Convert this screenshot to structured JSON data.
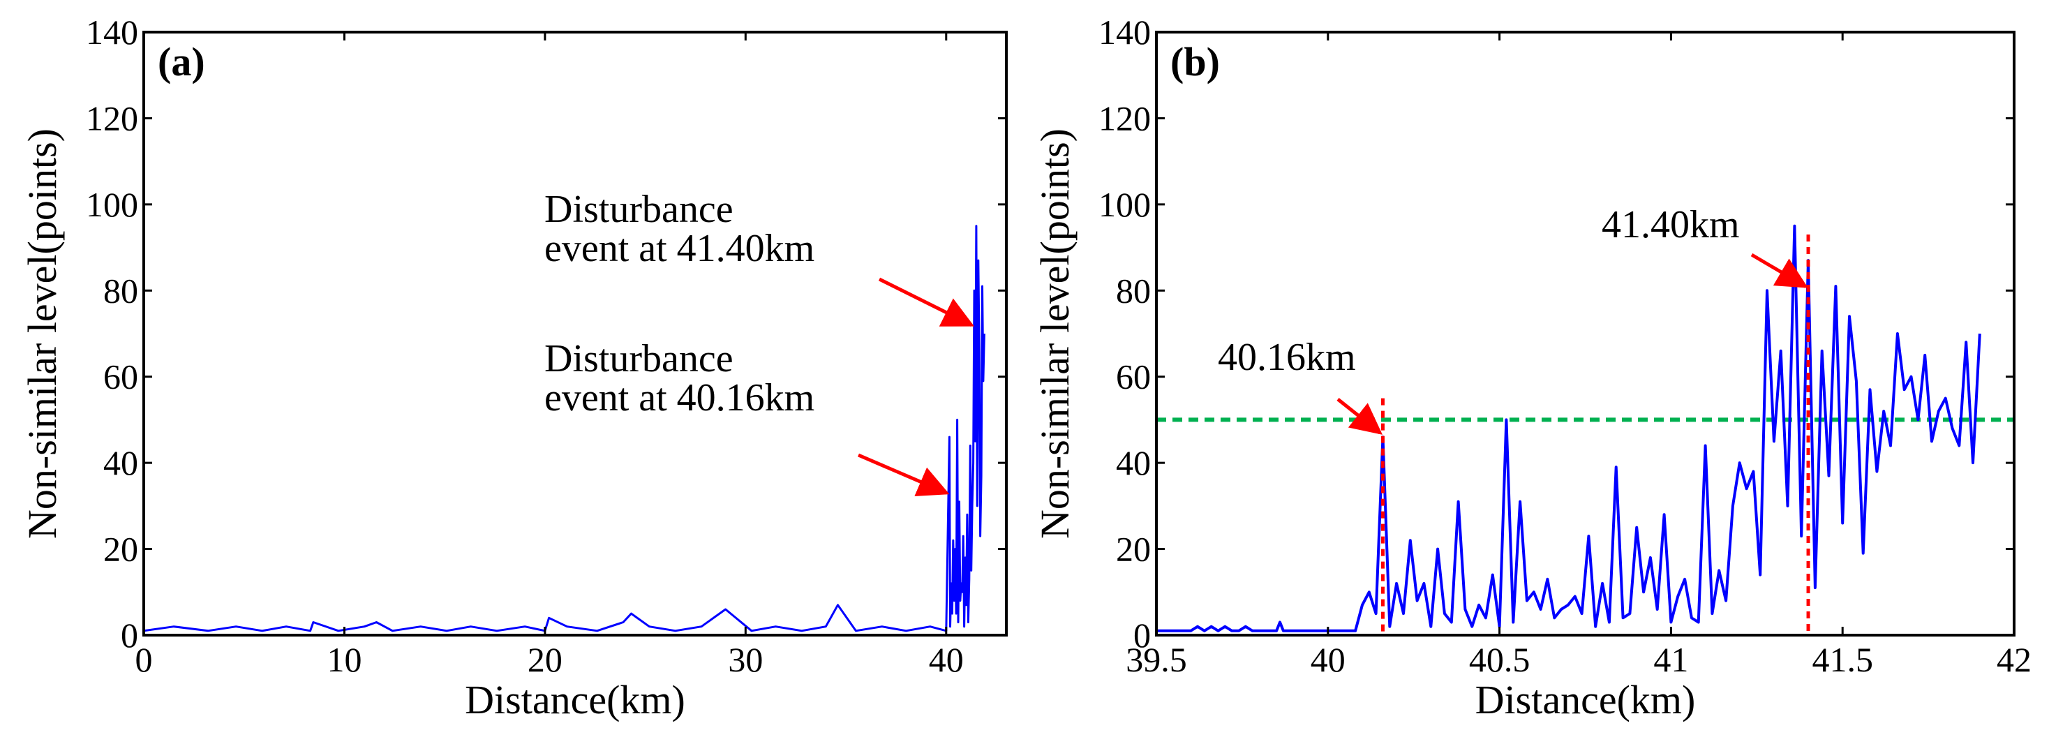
{
  "chart_data": [
    {
      "type": "line",
      "panel_label": "(a)",
      "xlabel": "Distance(km)",
      "ylabel": "Non-similar level(points)",
      "xlim": [
        0,
        43
      ],
      "ylim": [
        0,
        140
      ],
      "xticks": [
        0,
        10,
        20,
        30,
        40
      ],
      "yticks": [
        0,
        20,
        40,
        60,
        80,
        100,
        120,
        140
      ],
      "grid": false,
      "series": [
        {
          "color": "#0000ff",
          "x": [
            0.0,
            1.5,
            3.2,
            4.6,
            5.9,
            7.1,
            8.3,
            8.45,
            9.7,
            11.0,
            11.6,
            12.4,
            13.8,
            15.1,
            16.3,
            17.6,
            19.0,
            20.0,
            20.2,
            21.1,
            22.6,
            23.9,
            24.3,
            25.2,
            26.5,
            27.8,
            29.0,
            30.3,
            31.5,
            32.8,
            34.0,
            34.6,
            35.5,
            36.8,
            38.0,
            39.2,
            40.0,
            40.16,
            40.2,
            40.25,
            40.3,
            40.35,
            40.4,
            40.45,
            40.5,
            40.55,
            40.6,
            40.65,
            40.7,
            40.75,
            40.8,
            40.85,
            40.9,
            40.95,
            41.0,
            41.05,
            41.1,
            41.15,
            41.2,
            41.25,
            41.3,
            41.35,
            41.4,
            41.45,
            41.5,
            41.55,
            41.6,
            41.65,
            41.7,
            41.75,
            41.8,
            41.85,
            41.9
          ],
          "y": [
            1,
            2,
            1,
            2,
            1,
            2,
            1,
            3,
            1,
            2,
            3,
            1,
            2,
            1,
            2,
            1,
            2,
            1,
            4,
            2,
            1,
            3,
            5,
            2,
            1,
            2,
            6,
            1,
            2,
            1,
            2,
            7,
            1,
            2,
            1,
            2,
            1,
            46,
            2,
            12,
            5,
            22,
            8,
            20,
            5,
            50,
            3,
            31,
            8,
            12,
            10,
            23,
            2,
            18,
            7,
            28,
            3,
            13,
            44,
            15,
            30,
            40,
            80,
            45,
            95,
            30,
            87,
            66,
            23,
            37,
            81,
            59,
            70
          ]
        }
      ],
      "annotations": [
        {
          "text": [
            "Disturbance",
            "event at 41.40km"
          ],
          "target_x": 41.4,
          "target_y": 72
        },
        {
          "text": [
            "Disturbance",
            "event at 40.16km"
          ],
          "target_x": 40.16,
          "target_y": 33
        }
      ]
    },
    {
      "type": "line",
      "panel_label": "(b)",
      "xlabel": "Distance(km)",
      "ylabel": "Non-similar level(points)",
      "xlim": [
        39.5,
        42
      ],
      "ylim": [
        0,
        140
      ],
      "xticks": [
        39.5,
        40,
        40.5,
        41,
        41.5,
        42
      ],
      "xtick_labels": [
        "39.5",
        "40",
        "40.5",
        "41",
        "41.5",
        "42"
      ],
      "yticks": [
        0,
        20,
        40,
        60,
        80,
        100,
        120,
        140
      ],
      "grid": false,
      "series": [
        {
          "color": "#0000ff",
          "x": [
            39.5,
            39.6,
            39.62,
            39.64,
            39.66,
            39.68,
            39.7,
            39.72,
            39.74,
            39.76,
            39.78,
            39.8,
            39.85,
            39.86,
            39.87,
            39.9,
            40.0,
            40.08,
            40.1,
            40.12,
            40.14,
            40.16,
            40.18,
            40.2,
            40.22,
            40.24,
            40.26,
            40.28,
            40.3,
            40.32,
            40.34,
            40.36,
            40.38,
            40.4,
            40.42,
            40.44,
            40.46,
            40.48,
            40.5,
            40.52,
            40.54,
            40.56,
            40.58,
            40.6,
            40.62,
            40.64,
            40.66,
            40.68,
            40.7,
            40.72,
            40.74,
            40.76,
            40.78,
            40.8,
            40.82,
            40.84,
            40.86,
            40.88,
            40.9,
            40.92,
            40.94,
            40.96,
            40.98,
            41.0,
            41.02,
            41.04,
            41.06,
            41.08,
            41.1,
            41.12,
            41.14,
            41.16,
            41.18,
            41.2,
            41.22,
            41.24,
            41.26,
            41.28,
            41.3,
            41.32,
            41.34,
            41.36,
            41.38,
            41.4,
            41.42,
            41.44,
            41.46,
            41.48,
            41.5,
            41.52,
            41.54,
            41.56,
            41.58,
            41.6,
            41.62,
            41.64,
            41.66,
            41.68,
            41.7,
            41.72,
            41.74,
            41.76,
            41.78,
            41.8,
            41.82,
            41.84,
            41.86,
            41.88,
            41.9
          ],
          "y": [
            1,
            1,
            2,
            1,
            2,
            1,
            2,
            1,
            1,
            2,
            1,
            1,
            1,
            3,
            1,
            1,
            1,
            1,
            7,
            10,
            5,
            46,
            2,
            12,
            5,
            22,
            8,
            12,
            2,
            20,
            5,
            3,
            31,
            6,
            2,
            7,
            4,
            14,
            2,
            50,
            3,
            31,
            8,
            10,
            6,
            13,
            4,
            6,
            7,
            9,
            5,
            23,
            2,
            12,
            3,
            39,
            4,
            5,
            25,
            10,
            18,
            6,
            28,
            3,
            9,
            13,
            4,
            3,
            44,
            5,
            15,
            8,
            30,
            40,
            34,
            38,
            14,
            80,
            45,
            66,
            30,
            95,
            23,
            87,
            11,
            66,
            37,
            81,
            26,
            74,
            59,
            19,
            57,
            38,
            52,
            44,
            70,
            57,
            60,
            50,
            65,
            45,
            52,
            55,
            48,
            44,
            68,
            40,
            70
          ]
        }
      ],
      "threshold": {
        "y": 50,
        "color": "#00b050"
      },
      "markers": [
        {
          "x": 40.16,
          "label": "40.16km",
          "color": "#ff0000",
          "arrow_target_y": 46
        },
        {
          "x": 41.4,
          "label": "41.40km",
          "color": "#ff0000",
          "arrow_target_y": 80
        }
      ]
    }
  ]
}
